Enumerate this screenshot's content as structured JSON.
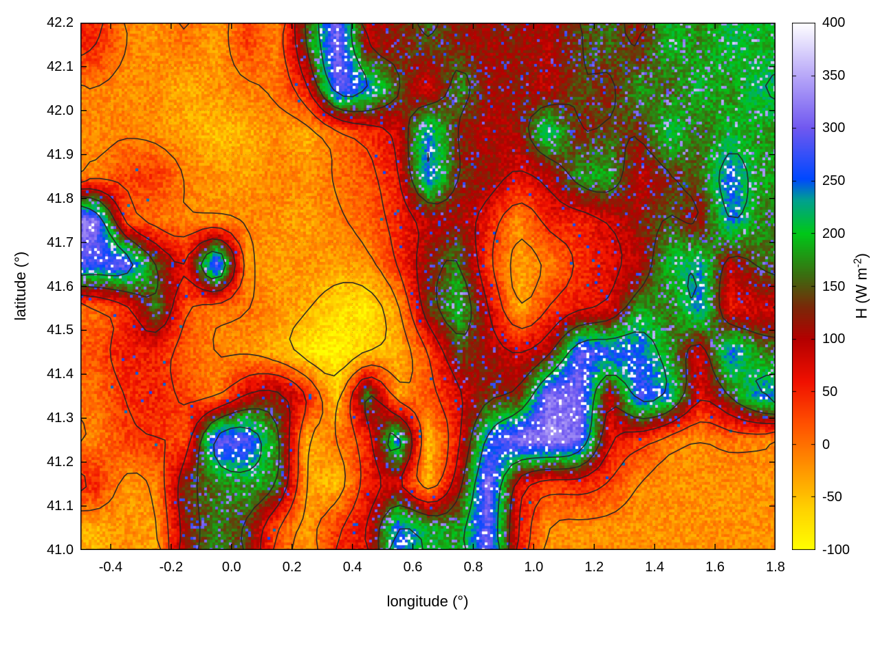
{
  "chart_data": {
    "type": "heatmap",
    "title": "",
    "xlabel": "longitude (°)",
    "ylabel": "latitude (°)",
    "colorbar_label": "H (W m^-2)",
    "cb_label_prefix": "H (W m",
    "cb_label_sup": "-2",
    "cb_label_suffix": ")",
    "x_range": [
      -0.5,
      1.8
    ],
    "y_range": [
      41.0,
      42.2
    ],
    "x_tick_values": [
      -0.4,
      -0.2,
      0.0,
      0.2,
      0.4,
      0.6,
      0.8,
      1.0,
      1.2,
      1.4,
      1.6,
      1.8
    ],
    "x_tick_labels": [
      "-0.4",
      "-0.2",
      "0.0",
      "0.2",
      "0.4",
      "0.6",
      "0.8",
      "1.0",
      "1.2",
      "1.4",
      "1.6",
      "1.8"
    ],
    "y_tick_values": [
      41.0,
      41.1,
      41.2,
      41.3,
      41.4,
      41.5,
      41.6,
      41.7,
      41.8,
      41.9,
      42.0,
      42.1,
      42.2
    ],
    "y_tick_labels": [
      "41.0",
      "41.1",
      "41.2",
      "41.3",
      "41.4",
      "41.5",
      "41.6",
      "41.7",
      "41.8",
      "41.9",
      "42.0",
      "42.1",
      "42.2"
    ],
    "cb_range": [
      -100,
      400
    ],
    "cb_tick_values": [
      -100,
      -50,
      0,
      50,
      100,
      150,
      200,
      250,
      300,
      350,
      400
    ],
    "cb_tick_labels": [
      "-100",
      "-50",
      "0",
      "50",
      "100",
      "150",
      "200",
      "250",
      "300",
      "350",
      "400"
    ],
    "palette_stops": [
      [
        -100,
        "#ffff00"
      ],
      [
        -60,
        "#ffd000"
      ],
      [
        -20,
        "#ff9000"
      ],
      [
        20,
        "#ff5000"
      ],
      [
        60,
        "#f01000"
      ],
      [
        100,
        "#b40000"
      ],
      [
        130,
        "#7a2808"
      ],
      [
        160,
        "#3c6c10"
      ],
      [
        200,
        "#00c818"
      ],
      [
        232,
        "#00a090"
      ],
      [
        252,
        "#0048ff"
      ],
      [
        300,
        "#7058f0"
      ],
      [
        350,
        "#b8a8f8"
      ],
      [
        400,
        "#ffffff"
      ]
    ],
    "contour_levels": [
      -45,
      -5,
      35,
      85,
      140,
      210
    ],
    "contour_color": "#262626",
    "grid": {
      "lon0": -0.45,
      "dlon": 0.1,
      "lat0": 42.15,
      "dlat": -0.1,
      "rows": 12,
      "cols": 23,
      "values": [
        [
          50,
          -10,
          -20,
          0,
          -30,
          30,
          -10,
          150,
          310,
          100,
          120,
          150,
          120,
          110,
          120,
          100,
          140,
          160,
          120,
          200,
          170,
          210,
          190
        ],
        [
          -10,
          -20,
          -15,
          -40,
          -20,
          -10,
          0,
          60,
          300,
          250,
          150,
          70,
          180,
          110,
          120,
          90,
          150,
          120,
          180,
          150,
          200,
          170,
          220
        ],
        [
          -15,
          -10,
          -20,
          -30,
          -50,
          -40,
          -20,
          -40,
          0,
          40,
          80,
          250,
          120,
          100,
          110,
          230,
          120,
          150,
          130,
          220,
          150,
          200,
          180
        ],
        [
          -10,
          30,
          40,
          -10,
          -20,
          -30,
          -10,
          -20,
          0,
          20,
          60,
          260,
          130,
          120,
          70,
          90,
          180,
          190,
          90,
          130,
          160,
          260,
          180
        ],
        [
          320,
          20,
          0,
          -10,
          -20,
          -10,
          -20,
          -30,
          -10,
          10,
          50,
          90,
          110,
          60,
          -20,
          60,
          50,
          80,
          120,
          150,
          100,
          250,
          170
        ],
        [
          280,
          300,
          150,
          60,
          310,
          -20,
          -30,
          -20,
          -30,
          -20,
          40,
          120,
          170,
          30,
          -30,
          -10,
          40,
          70,
          90,
          200,
          230,
          90,
          160
        ],
        [
          0,
          40,
          170,
          20,
          -10,
          0,
          -20,
          -40,
          -70,
          -80,
          -30,
          130,
          200,
          90,
          -40,
          40,
          60,
          70,
          190,
          160,
          250,
          60,
          80
        ],
        [
          20,
          60,
          50,
          10,
          -10,
          -20,
          -40,
          -80,
          -90,
          -60,
          -40,
          20,
          140,
          110,
          80,
          100,
          290,
          270,
          260,
          180,
          80,
          260,
          170
        ],
        [
          0,
          40,
          50,
          30,
          -10,
          90,
          120,
          60,
          -60,
          180,
          -30,
          20,
          70,
          130,
          120,
          320,
          310,
          90,
          280,
          240,
          70,
          150,
          250
        ],
        [
          -10,
          30,
          40,
          20,
          300,
          290,
          170,
          -40,
          0,
          40,
          260,
          -50,
          60,
          250,
          320,
          330,
          310,
          70,
          40,
          -10,
          -20,
          0,
          -15
        ],
        [
          50,
          -30,
          -10,
          140,
          160,
          190,
          170,
          -30,
          -50,
          60,
          80,
          -40,
          100,
          320,
          70,
          30,
          50,
          30,
          -15,
          -20,
          -20,
          -20,
          -20
        ],
        [
          -40,
          -20,
          -30,
          120,
          170,
          140,
          20,
          -30,
          40,
          70,
          260,
          200,
          180,
          300,
          60,
          -20,
          -20,
          -20,
          -20,
          -20,
          -20,
          -20,
          -20
        ]
      ]
    }
  }
}
